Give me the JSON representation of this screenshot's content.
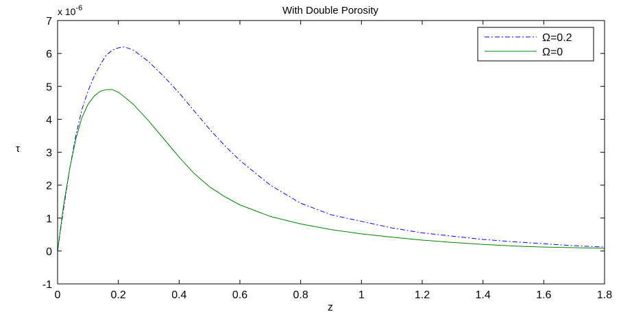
{
  "chart_data": {
    "type": "line",
    "title": "With Double Porosity",
    "xlabel": "z",
    "ylabel": "τ",
    "y_scale_label": "x 10",
    "y_scale_exponent": "-6",
    "xlim": [
      0,
      1.8
    ],
    "ylim": [
      -1,
      7
    ],
    "xticks": [
      0,
      0.2,
      0.4,
      0.6,
      0.8,
      1,
      1.2,
      1.4,
      1.6,
      1.8
    ],
    "xtick_labels": [
      "0",
      "0.2",
      "0.4",
      "0.6",
      "0.8",
      "1",
      "1.2",
      "1.4",
      "1.6",
      "1.8"
    ],
    "yticks": [
      -1,
      0,
      1,
      2,
      3,
      4,
      5,
      6,
      7
    ],
    "ytick_labels": [
      "-1",
      "0",
      "1",
      "2",
      "3",
      "4",
      "5",
      "6",
      "7"
    ],
    "grid": false,
    "legend_position": "top-right",
    "series": [
      {
        "name": "Ω=0.2",
        "color": "#0000ff",
        "dash": "dash-dot",
        "x": [
          0,
          0.02,
          0.04,
          0.06,
          0.08,
          0.1,
          0.12,
          0.14,
          0.16,
          0.18,
          0.2,
          0.22,
          0.25,
          0.3,
          0.35,
          0.4,
          0.45,
          0.5,
          0.55,
          0.6,
          0.7,
          0.8,
          0.9,
          1.0,
          1.1,
          1.2,
          1.3,
          1.4,
          1.5,
          1.6,
          1.7,
          1.8
        ],
        "values": [
          0,
          1.3,
          2.5,
          3.5,
          4.3,
          4.85,
          5.3,
          5.65,
          5.95,
          6.1,
          6.17,
          6.2,
          6.1,
          5.75,
          5.3,
          4.8,
          4.25,
          3.7,
          3.2,
          2.75,
          2.0,
          1.45,
          1.1,
          0.9,
          0.7,
          0.55,
          0.45,
          0.35,
          0.28,
          0.22,
          0.16,
          0.12
        ]
      },
      {
        "name": "Ω=0",
        "color": "#008000",
        "dash": "solid",
        "x": [
          0,
          0.02,
          0.04,
          0.06,
          0.08,
          0.1,
          0.12,
          0.14,
          0.16,
          0.18,
          0.2,
          0.22,
          0.25,
          0.3,
          0.35,
          0.4,
          0.45,
          0.5,
          0.55,
          0.6,
          0.7,
          0.8,
          0.9,
          1.0,
          1.1,
          1.2,
          1.3,
          1.4,
          1.5,
          1.6,
          1.7,
          1.8
        ],
        "values": [
          0,
          1.4,
          2.5,
          3.4,
          4.05,
          4.45,
          4.7,
          4.85,
          4.9,
          4.9,
          4.82,
          4.68,
          4.45,
          3.95,
          3.4,
          2.85,
          2.35,
          1.95,
          1.65,
          1.4,
          1.05,
          0.82,
          0.65,
          0.52,
          0.42,
          0.33,
          0.26,
          0.2,
          0.15,
          0.12,
          0.1,
          0.08
        ]
      }
    ]
  }
}
